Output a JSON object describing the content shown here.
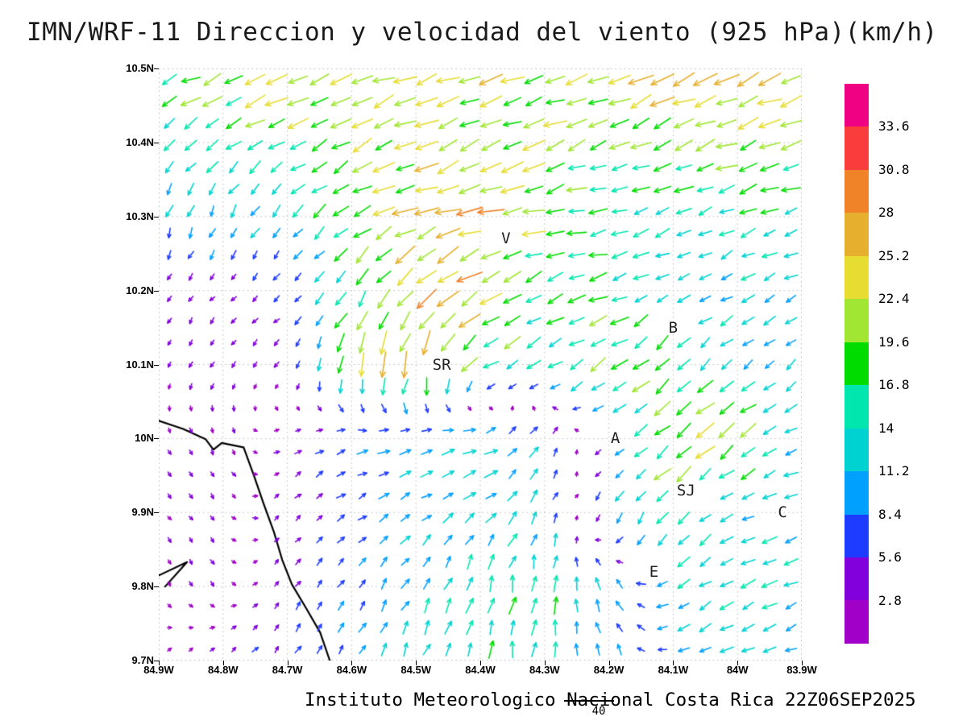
{
  "title": "IMN/WRF-11 Direccion y velocidad del viento (925 hPa)(km/h)",
  "footer": {
    "text": "Instituto Meteorologico Nacional Costa Rica 22Z06SEP2025",
    "ref_arrow_label": "40"
  },
  "chart_data": {
    "type": "quiver",
    "title": "IMN/WRF-11 Direccion y velocidad del viento (925 hPa)(km/h)",
    "xlabel": "",
    "ylabel": "",
    "units": "km/h",
    "grid": true,
    "lon_range_w": [
      84.9,
      83.9
    ],
    "lat_range": [
      9.7,
      10.5
    ],
    "x_ticks": [
      "84.9W",
      "84.8W",
      "84.7W",
      "84.6W",
      "84.5W",
      "84.4W",
      "84.3W",
      "84.2W",
      "84.1W",
      "84W",
      "83.9W"
    ],
    "y_ticks": [
      "10.5N",
      "10.4N",
      "10.3N",
      "10.2N",
      "10.1N",
      "10N",
      "9.9N",
      "9.8N",
      "9.7N"
    ],
    "colorbar": {
      "levels": [
        2.8,
        5.6,
        8.4,
        11.2,
        14,
        16.8,
        19.6,
        22.4,
        25.2,
        28,
        30.8,
        33.6
      ],
      "labels_top_to_bottom": [
        "33.6",
        "30.8",
        "28",
        "25.2",
        "22.4",
        "19.6",
        "16.8",
        "14",
        "11.2",
        "8.4",
        "5.6",
        "2.8"
      ],
      "colors_low_to_high": [
        "#a000c8",
        "#8200dc",
        "#1e3cff",
        "#00a0ff",
        "#00d2d2",
        "#00e6af",
        "#00dc00",
        "#a0e632",
        "#e6dc32",
        "#e6af2d",
        "#f08228",
        "#fa3c3c",
        "#f00082"
      ]
    },
    "stations": [
      {
        "label": "V",
        "lon_w": 84.36,
        "lat": 10.27
      },
      {
        "label": "B",
        "lon_w": 84.1,
        "lat": 10.15
      },
      {
        "label": "SR",
        "lon_w": 84.46,
        "lat": 10.1
      },
      {
        "label": "A",
        "lon_w": 84.19,
        "lat": 10.0
      },
      {
        "label": "SJ",
        "lon_w": 84.08,
        "lat": 9.93
      },
      {
        "label": "C",
        "lon_w": 83.93,
        "lat": 9.9
      },
      {
        "label": "E",
        "lon_w": 84.13,
        "lat": 9.82
      }
    ],
    "wind": {
      "lon_w": [
        84.9,
        84.8,
        84.7,
        84.6,
        84.5,
        84.4,
        84.3,
        84.2,
        84.1,
        84.0,
        83.9
      ],
      "lat": [
        10.5,
        10.4,
        10.3,
        10.2,
        10.1,
        10.0,
        9.9,
        9.8,
        9.7
      ],
      "u": [
        [
          -20,
          -21,
          -22,
          -22,
          -21,
          -21,
          -20,
          -22,
          -23,
          -24,
          -22
        ],
        [
          -10,
          -12,
          -16,
          -18,
          -19,
          -20,
          -19,
          -18,
          -19,
          -20,
          -18
        ],
        [
          -3,
          -5,
          -8,
          -14,
          -24,
          -27,
          -20,
          -14,
          -13,
          -14,
          -13
        ],
        [
          -2,
          -3,
          -4,
          -10,
          -16,
          -20,
          -15,
          -16,
          -10,
          -11,
          -10
        ],
        [
          -2,
          -2,
          -3,
          -6,
          -8,
          -14,
          -12,
          -16,
          -12,
          -10,
          -9
        ],
        [
          2,
          1,
          3,
          8,
          10,
          12,
          6,
          -6,
          -18,
          -16,
          -10
        ],
        [
          2,
          2,
          3,
          6,
          9,
          10,
          5,
          -4,
          -8,
          -12,
          -11
        ],
        [
          1,
          2,
          3,
          5,
          6,
          4,
          2,
          -4,
          -10,
          -13,
          -12
        ],
        [
          2,
          3,
          4,
          5,
          5,
          3,
          1,
          -3,
          -8,
          -11,
          -10
        ]
      ],
      "v": [
        [
          -8,
          -9,
          -9,
          -8,
          -8,
          -9,
          -8,
          -9,
          -10,
          -9,
          -8
        ],
        [
          -8,
          -9,
          -10,
          -9,
          -8,
          -8,
          -8,
          -7,
          -8,
          -8,
          -7
        ],
        [
          -11,
          -10,
          -9,
          -10,
          -9,
          -7,
          -5,
          -4,
          -5,
          -6,
          -5
        ],
        [
          -4,
          -3,
          -4,
          -14,
          -18,
          -14,
          -8,
          -4,
          -6,
          -6,
          -5
        ],
        [
          -3,
          -4,
          -3,
          -20,
          -26,
          -10,
          -6,
          -10,
          -12,
          -8,
          -7
        ],
        [
          -2,
          -3,
          2,
          3,
          4,
          5,
          8,
          -4,
          -14,
          -12,
          -4
        ],
        [
          -2,
          -3,
          3,
          4,
          5,
          8,
          10,
          -10,
          -12,
          -6,
          -4
        ],
        [
          -3,
          -2,
          4,
          6,
          10,
          14,
          16,
          10,
          -6,
          -7,
          -5
        ],
        [
          2,
          3,
          5,
          8,
          12,
          15,
          14,
          10,
          -4,
          -5,
          -4
        ]
      ]
    },
    "coastline": [
      [
        [
          84.9,
          10.024
        ],
        [
          84.862,
          10.013
        ],
        [
          84.827,
          9.999
        ],
        [
          84.815,
          9.985
        ],
        [
          84.802,
          9.994
        ],
        [
          84.768,
          9.988
        ],
        [
          84.752,
          9.95
        ],
        [
          84.737,
          9.912
        ],
        [
          84.721,
          9.874
        ],
        [
          84.708,
          9.836
        ],
        [
          84.693,
          9.803
        ],
        [
          84.671,
          9.771
        ],
        [
          84.649,
          9.738
        ],
        [
          84.634,
          9.7
        ]
      ],
      [
        [
          84.9,
          9.815
        ],
        [
          84.856,
          9.833
        ],
        [
          84.89,
          9.8
        ]
      ]
    ]
  }
}
